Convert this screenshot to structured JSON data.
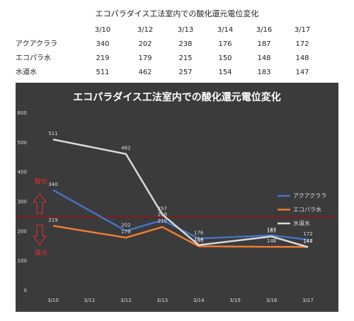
{
  "table": {
    "title": "エコパラダイス工法室内での酸化還元電位変化",
    "columns": [
      "3/10",
      "3/12",
      "3/13",
      "3/14",
      "3/16",
      "3/17"
    ],
    "rows": [
      [
        "アクアクララ",
        340,
        202,
        238,
        176,
        187,
        172
      ],
      [
        "エコパラ水",
        219,
        179,
        215,
        150,
        148,
        148
      ],
      [
        "水道水",
        511,
        462,
        257,
        154,
        183,
        147
      ]
    ]
  },
  "chart_data": {
    "type": "line",
    "title": "エコパラダイス工法室内での酸化還元電位変化",
    "xticks": [
      "3/10",
      "3/11",
      "3/12",
      "3/13",
      "3/14",
      "3/15",
      "3/16",
      "3/17"
    ],
    "x": [
      "3/10",
      "3/12",
      "3/13",
      "3/14",
      "3/16",
      "3/17"
    ],
    "series": [
      {
        "name": "アクアクララ",
        "color": "#4472c4",
        "values": [
          340,
          202,
          238,
          176,
          187,
          172
        ]
      },
      {
        "name": "エコパラ水",
        "color": "#ed7d31",
        "values": [
          219,
          179,
          215,
          150,
          148,
          148
        ]
      },
      {
        "name": "水道水",
        "color": "#d9d9d9",
        "values": [
          511,
          462,
          257,
          154,
          183,
          147
        ]
      }
    ],
    "ylim": [
      0,
      600
    ],
    "yticks": [
      0,
      100,
      200,
      300,
      400,
      500,
      600
    ],
    "reference_line": {
      "value": 250,
      "color": "#c00000"
    },
    "annotations": [
      "酸化",
      "還元"
    ],
    "legend": "right"
  }
}
